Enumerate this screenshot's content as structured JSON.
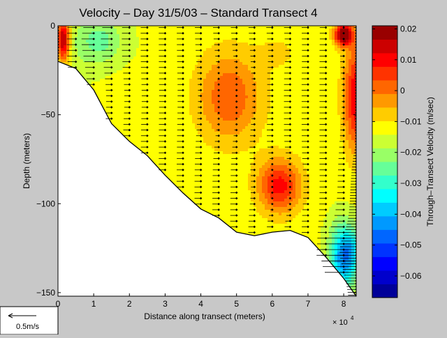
{
  "chart_data": {
    "type": "heatmap",
    "title": "Velocity – Day 31/5/03 – Standard Transect 4",
    "xlabel": "Distance along transect (meters)",
    "ylabel": "Depth (meters)",
    "x_exponent_label": "× 10",
    "x_exponent_power": "4",
    "xlim": [
      0,
      83500
    ],
    "ylim": [
      -152,
      0
    ],
    "x_ticks": [
      0,
      1,
      2,
      3,
      4,
      5,
      6,
      7,
      8
    ],
    "y_ticks": [
      0,
      -50,
      -100,
      -150
    ],
    "colorbar": {
      "label": "Through–Transect Velocity (m/sec)",
      "min": -0.067,
      "max": 0.021,
      "ticks": [
        "0.02",
        "0.01",
        "0",
        "−0.01",
        "−0.02",
        "−0.03",
        "−0.04",
        "−0.05",
        "−0.06"
      ],
      "tick_values": [
        0.02,
        0.01,
        0,
        -0.01,
        -0.02,
        -0.03,
        -0.04,
        -0.05,
        -0.06
      ]
    },
    "bathymetry": {
      "x": [
        0,
        5000,
        10000,
        15000,
        20000,
        25000,
        30000,
        35000,
        40000,
        45000,
        50000,
        55000,
        60000,
        65000,
        70000,
        75000,
        80000,
        83500
      ],
      "depth": [
        -20,
        -24,
        -36,
        -55,
        -65,
        -73,
        -84,
        -94,
        -103,
        -108,
        -116,
        -118,
        -116,
        -115,
        -119,
        -130,
        -142,
        -152
      ]
    },
    "stations_x": [
      0,
      5000,
      10000,
      15000,
      20000,
      25000,
      30000,
      35000,
      40000,
      45000,
      50000,
      55000,
      60000,
      65000,
      70000,
      75000,
      80000,
      83500
    ],
    "velocity_field": {
      "background": -0.013,
      "features": [
        {
          "x": 10000,
          "depth": -10,
          "sx": 9000,
          "sy": 18,
          "value": -0.021
        },
        {
          "x": 12000,
          "depth": -8,
          "sx": 4500,
          "sy": 8,
          "value": -0.018
        },
        {
          "x": 19000,
          "depth": -40,
          "sx": 8000,
          "sy": 14,
          "value": -0.01
        },
        {
          "x": 62000,
          "depth": -90,
          "sx": 6000,
          "sy": 15,
          "value": 0.01
        },
        {
          "x": 62000,
          "depth": -15,
          "sx": 6000,
          "sy": 10,
          "value": -0.009
        },
        {
          "x": 48000,
          "depth": -40,
          "sx": 9000,
          "sy": 25,
          "value": 0.003
        },
        {
          "x": 83500,
          "depth": -40,
          "sx": 3500,
          "sy": 30,
          "value": 0.012
        },
        {
          "x": 80000,
          "depth": -5,
          "sx": 2500,
          "sy": 6,
          "value": 0.025
        },
        {
          "x": 1500,
          "depth": -8,
          "sx": 1800,
          "sy": 12,
          "value": 0.02
        },
        {
          "x": 80000,
          "depth": -130,
          "sx": 4000,
          "sy": 18,
          "value": -0.045
        },
        {
          "x": 83000,
          "depth": -125,
          "sx": 2500,
          "sy": 10,
          "value": -0.02
        },
        {
          "x": 76000,
          "depth": -125,
          "sx": 3000,
          "sy": 6,
          "value": -0.012
        }
      ]
    },
    "scale_arrow": {
      "label": "0.5m/s"
    }
  }
}
